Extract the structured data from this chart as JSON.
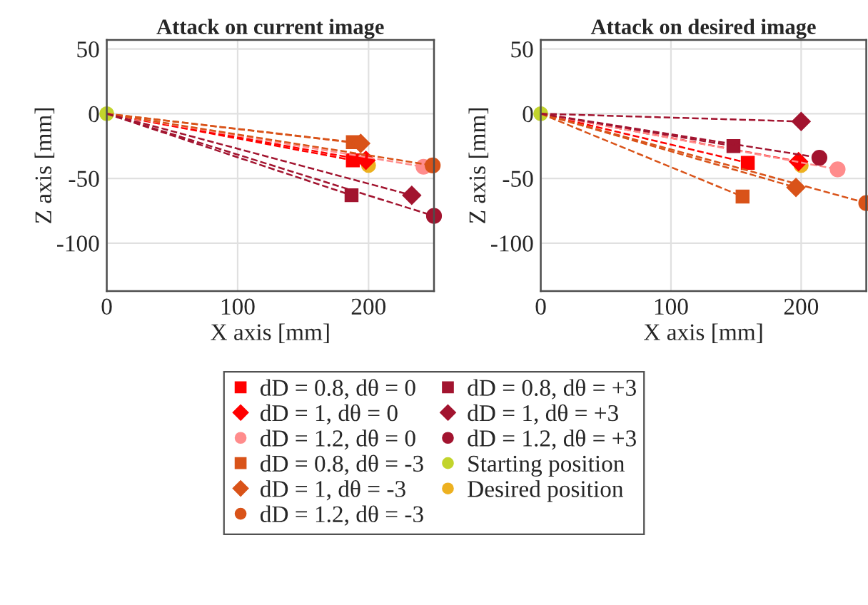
{
  "chart_data": [
    {
      "type": "line",
      "title": "Attack on current image",
      "xlabel": "X axis [mm]",
      "ylabel": "Z axis [mm]",
      "xlim": [
        0,
        250
      ],
      "ylim": [
        -137,
        57
      ],
      "xticks": [
        0,
        100,
        200
      ],
      "yticks": [
        -100,
        -50,
        0,
        50
      ],
      "grid": true,
      "legend": "bottom",
      "line_style": "dashed",
      "series": [
        {
          "name": "dD = 0.8, dθ = 0",
          "color": "#ff0000",
          "marker": "square",
          "x": [
            0,
            188
          ],
          "values": [
            0,
            -36
          ]
        },
        {
          "name": "dD = 1, dθ = 0",
          "color": "#ff0000",
          "marker": "diamond",
          "x": [
            0,
            198
          ],
          "values": [
            0,
            -36
          ]
        },
        {
          "name": "dD = 1.2, dθ = 0",
          "color": "#ff8c8c",
          "marker": "circle",
          "x": [
            0,
            242
          ],
          "values": [
            0,
            -41
          ]
        },
        {
          "name": "dD = 0.8, dθ = -3",
          "color": "#d95319",
          "marker": "square",
          "x": [
            0,
            188
          ],
          "values": [
            0,
            -22
          ]
        },
        {
          "name": "dD = 1, dθ = -3",
          "color": "#d95319",
          "marker": "diamond",
          "x": [
            0,
            194
          ],
          "values": [
            0,
            -23
          ]
        },
        {
          "name": "dD = 1.2, dθ = -3",
          "color": "#d95319",
          "marker": "circle",
          "x": [
            0,
            249
          ],
          "values": [
            0,
            -40
          ]
        },
        {
          "name": "dD = 0.8, dθ = +3",
          "color": "#a2142f",
          "marker": "square",
          "x": [
            0,
            187
          ],
          "values": [
            0,
            -63
          ]
        },
        {
          "name": "dD = 1, dθ = +3",
          "color": "#a2142f",
          "marker": "diamond",
          "x": [
            0,
            233
          ],
          "values": [
            0,
            -63
          ]
        },
        {
          "name": "dD = 1.2, dθ = +3",
          "color": "#a2142f",
          "marker": "circle",
          "x": [
            0,
            250
          ],
          "values": [
            0,
            -79
          ]
        },
        {
          "name": "Starting position",
          "type": "scatter",
          "color": "#c2d42c",
          "marker": "circle",
          "x": [
            0
          ],
          "values": [
            0
          ]
        },
        {
          "name": "Desired position",
          "type": "scatter",
          "color": "#edb120",
          "marker": "circle",
          "x": [
            200
          ],
          "values": [
            -40
          ]
        }
      ]
    },
    {
      "type": "line",
      "title": "Attack on desired image",
      "xlabel": "X axis [mm]",
      "ylabel": "Z axis [mm]",
      "xlim": [
        0,
        250
      ],
      "ylim": [
        -137,
        57
      ],
      "xticks": [
        0,
        100,
        200
      ],
      "yticks": [
        -100,
        -50,
        0,
        50
      ],
      "grid": true,
      "line_style": "dashed",
      "series": [
        {
          "color": "#ff0000",
          "marker": "square",
          "x": [
            0,
            159
          ],
          "values": [
            0,
            -38
          ]
        },
        {
          "color": "#ff0000",
          "marker": "diamond",
          "x": [
            0,
            198
          ],
          "values": [
            0,
            -37
          ]
        },
        {
          "color": "#ff8c8c",
          "marker": "circle",
          "x": [
            0,
            228
          ],
          "values": [
            0,
            -43
          ]
        },
        {
          "color": "#d95319",
          "marker": "square",
          "x": [
            0,
            155
          ],
          "values": [
            0,
            -64
          ]
        },
        {
          "color": "#d95319",
          "marker": "diamond",
          "x": [
            0,
            196
          ],
          "values": [
            0,
            -57
          ]
        },
        {
          "color": "#d95319",
          "marker": "circle",
          "x": [
            0,
            250
          ],
          "values": [
            0,
            -69
          ]
        },
        {
          "color": "#a2142f",
          "marker": "square",
          "x": [
            0,
            148
          ],
          "values": [
            0,
            -25
          ]
        },
        {
          "color": "#a2142f",
          "marker": "diamond",
          "x": [
            0,
            200
          ],
          "values": [
            0,
            -6
          ]
        },
        {
          "color": "#a2142f",
          "marker": "circle",
          "x": [
            0,
            214
          ],
          "values": [
            0,
            -34
          ]
        },
        {
          "type": "scatter",
          "color": "#c2d42c",
          "marker": "circle",
          "x": [
            0
          ],
          "values": [
            0
          ]
        },
        {
          "type": "scatter",
          "color": "#edb120",
          "marker": "circle",
          "x": [
            200
          ],
          "values": [
            -40
          ]
        }
      ]
    }
  ]
}
